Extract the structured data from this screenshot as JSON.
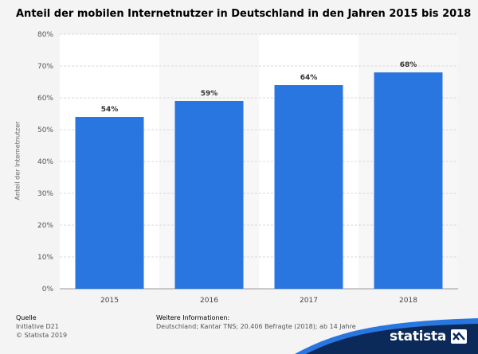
{
  "title": "Anteil der mobilen Internetnutzer in Deutschland in den Jahren 2015 bis 2018",
  "chart_data": {
    "type": "bar",
    "categories": [
      "2015",
      "2016",
      "2017",
      "2018"
    ],
    "values": [
      54,
      59,
      64,
      68
    ],
    "value_labels": [
      "54%",
      "59%",
      "64%",
      "68%"
    ],
    "ylabel": "Anteil der Internetnutzer",
    "xlabel": "",
    "ylim": [
      0,
      80
    ],
    "yticks": [
      0,
      10,
      20,
      30,
      40,
      50,
      60,
      70,
      80
    ],
    "ytick_labels": [
      "0%",
      "10%",
      "20%",
      "30%",
      "40%",
      "50%",
      "60%",
      "70%",
      "80%"
    ],
    "grid": true,
    "bar_color": "#2976e0"
  },
  "footer": {
    "source_heading": "Quelle",
    "source_lines": [
      "Initiative D21",
      "© Statista 2019"
    ],
    "info_heading": "Weitere Informationen:",
    "info_text": "Deutschland; Kantar TNS; 20.406 Befragte (2018); ab 14 Jahre"
  },
  "brand": {
    "name": "statista",
    "icon": "statista-logo-icon",
    "color": "#0b2a5a",
    "accent": "#2976e0"
  }
}
